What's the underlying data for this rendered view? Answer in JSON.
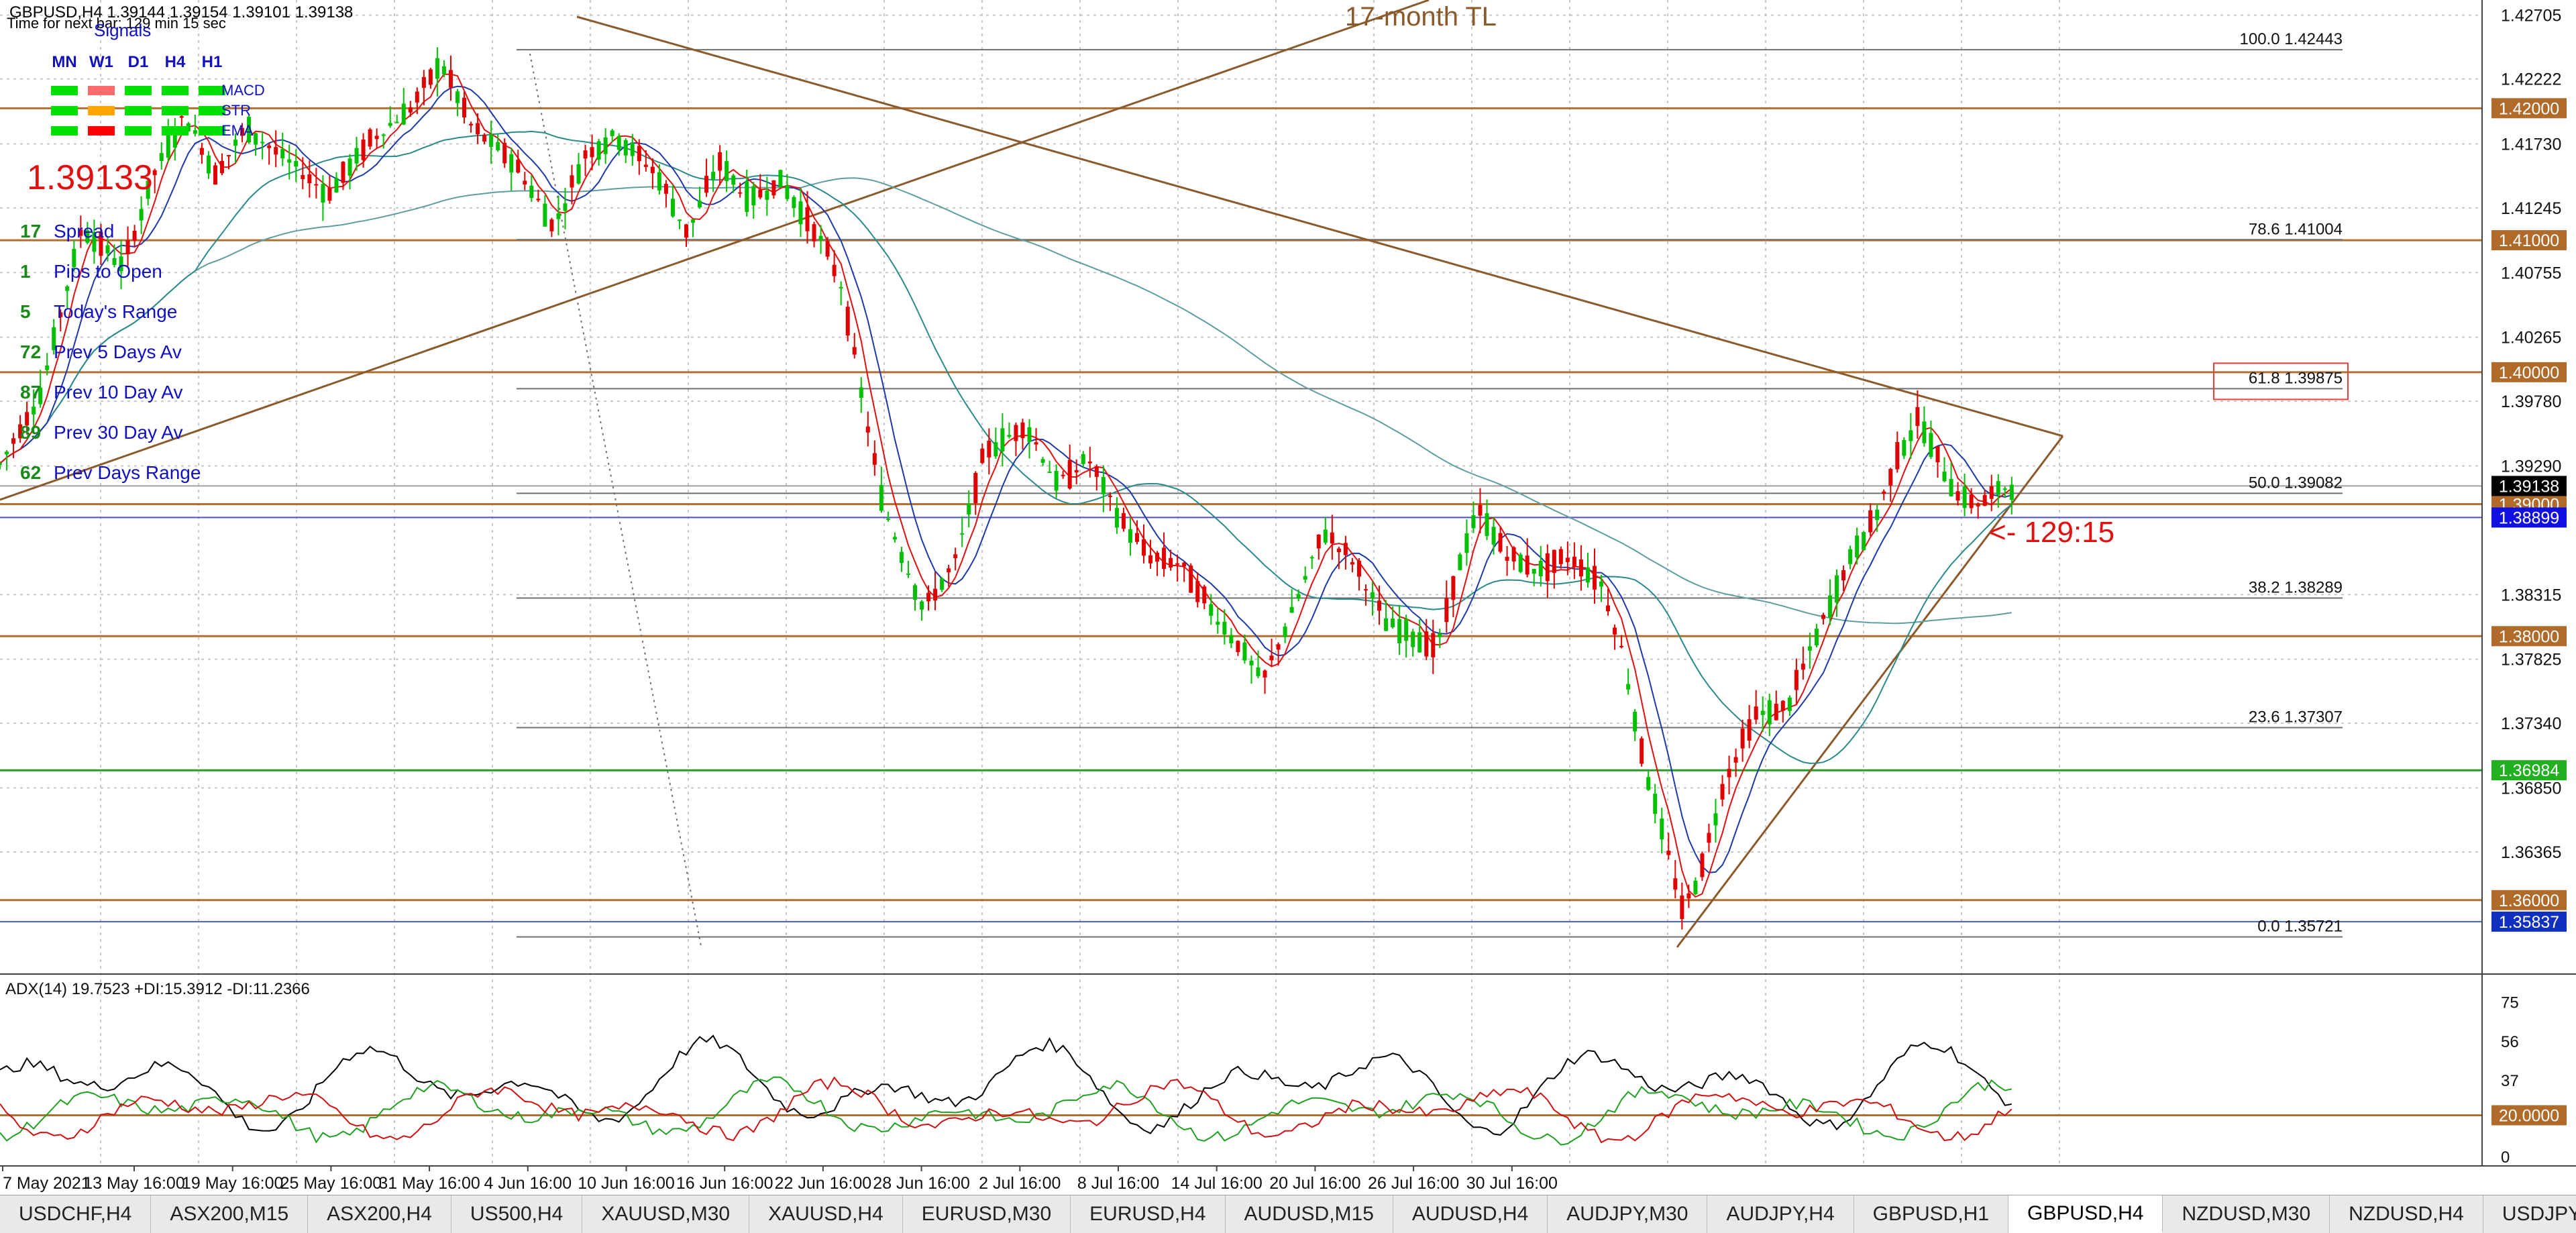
{
  "header": {
    "symbol_line": "GBPUSD,H4  1.39144 1.39154 1.39101 1.39138",
    "timer_line": "Time for next bar: 129 min 15 sec"
  },
  "signals": {
    "title": "Signals",
    "timeframes": [
      "MN",
      "W1",
      "D1",
      "H4",
      "H1"
    ],
    "rows": [
      {
        "name": "MACD",
        "colors": [
          "#00e000",
          "#ff6a6a",
          "#00e000",
          "#00e000",
          "#00e000"
        ]
      },
      {
        "name": "STR",
        "colors": [
          "#00e000",
          "#ffa500",
          "#00e000",
          "#00e000",
          "#00e000"
        ]
      },
      {
        "name": "EMA",
        "colors": [
          "#00e000",
          "#ff0000",
          "#00e000",
          "#00e000",
          "#00e000"
        ]
      }
    ]
  },
  "info_panel": {
    "big_price": "1.39133",
    "rows": [
      {
        "value": "17",
        "label": "Spread"
      },
      {
        "value": "1",
        "label": "Pips to Open"
      },
      {
        "value": "5",
        "label": "Today's Range"
      },
      {
        "value": "72",
        "label": "Prev 5 Days Av"
      },
      {
        "value": "87",
        "label": "Prev 10 Day Av"
      },
      {
        "value": "89",
        "label": "Prev 30 Day Av"
      },
      {
        "value": "62",
        "label": "Prev Days Range"
      }
    ]
  },
  "annotations": {
    "trendline_label": "17-month TL",
    "countdown": "<- 129:15"
  },
  "colors": {
    "bull": "#00c000",
    "bear": "#e00000",
    "ma_red": "#e01010",
    "ma_blue": "#1e3aa8",
    "ma_teal": "#2a8a8a",
    "ma_slow": "#5f9ea0",
    "trendline": "#8b5a2b",
    "level_line": "#b07030",
    "grid": "#c8c8c8"
  },
  "chart_data": {
    "type": "candlestick",
    "symbol": "GBPUSD",
    "timeframe": "H4",
    "price_axis": [
      "1.42705",
      "1.42222",
      "1.41730",
      "1.41245",
      "1.40755",
      "1.40265",
      "1.39780",
      "1.39290",
      "1.38315",
      "1.37825",
      "1.37340",
      "1.36850",
      "1.36365"
    ],
    "price_range": [
      1.3545,
      1.4282
    ],
    "time_axis": [
      "7 May 2021",
      "13 May 16:00",
      "19 May 16:00",
      "25 May 16:00",
      "31 May 16:00",
      "4 Jun 16:00",
      "10 Jun 16:00",
      "16 Jun 16:00",
      "22 Jun 16:00",
      "28 Jun 16:00",
      "2 Jul 16:00",
      "8 Jul 16:00",
      "14 Jul 16:00",
      "20 Jul 16:00",
      "26 Jul 16:00",
      "30 Jul 16:00"
    ],
    "horizontal_levels": [
      {
        "price": 1.42,
        "label": "1.42000"
      },
      {
        "price": 1.41,
        "label": "1.41000"
      },
      {
        "price": 1.4,
        "label": "1.40000"
      },
      {
        "price": 1.39,
        "label": "1.39000"
      },
      {
        "price": 1.38,
        "label": "1.38000"
      },
      {
        "price": 1.36984,
        "label": "1.36984"
      },
      {
        "price": 1.36,
        "label": "1.36000"
      }
    ],
    "current_price": {
      "price": 1.39138,
      "label": "1.39138"
    },
    "ask_price": {
      "price": 1.38899,
      "label": "1.38899"
    },
    "low_marker": {
      "price": 1.35837,
      "label": "1.35837"
    },
    "fibonacci": [
      {
        "level": "100.0",
        "price": 1.42443,
        "label": "1.42443"
      },
      {
        "level": "78.6",
        "price": 1.41004,
        "label": "1.41004"
      },
      {
        "level": "61.8",
        "price": 1.39875,
        "label": "1.39875"
      },
      {
        "level": "50.0",
        "price": 1.39082,
        "label": "1.39082"
      },
      {
        "level": "38.2",
        "price": 1.38289,
        "label": "1.38289"
      },
      {
        "level": "23.6",
        "price": 1.37307,
        "label": "1.37307"
      },
      {
        "level": "0.0",
        "price": 1.35721,
        "label": "1.35721"
      }
    ],
    "close_path": [
      [
        0,
        1.393
      ],
      [
        0.02,
        1.3985
      ],
      [
        0.04,
        1.411
      ],
      [
        0.06,
        1.408
      ],
      [
        0.075,
        1.415
      ],
      [
        0.09,
        1.4195
      ],
      [
        0.105,
        1.415
      ],
      [
        0.12,
        1.4185
      ],
      [
        0.14,
        1.416
      ],
      [
        0.16,
        1.4135
      ],
      [
        0.18,
        1.4175
      ],
      [
        0.2,
        1.42
      ],
      [
        0.215,
        1.4235
      ],
      [
        0.23,
        1.4185
      ],
      [
        0.25,
        1.416
      ],
      [
        0.27,
        1.411
      ],
      [
        0.285,
        1.4165
      ],
      [
        0.3,
        1.418
      ],
      [
        0.32,
        1.415
      ],
      [
        0.335,
        1.4105
      ],
      [
        0.35,
        1.416
      ],
      [
        0.365,
        1.413
      ],
      [
        0.38,
        1.4145
      ],
      [
        0.4,
        1.41
      ],
      [
        0.41,
        1.4065
      ],
      [
        0.42,
        1.398
      ],
      [
        0.43,
        1.39
      ],
      [
        0.44,
        1.386
      ],
      [
        0.45,
        1.382
      ],
      [
        0.465,
        1.3855
      ],
      [
        0.48,
        1.394
      ],
      [
        0.5,
        1.396
      ],
      [
        0.515,
        1.3915
      ],
      [
        0.53,
        1.3935
      ],
      [
        0.545,
        1.389
      ],
      [
        0.56,
        1.386
      ],
      [
        0.575,
        1.3855
      ],
      [
        0.59,
        1.382
      ],
      [
        0.605,
        1.379
      ],
      [
        0.615,
        1.3765
      ],
      [
        0.63,
        1.382
      ],
      [
        0.645,
        1.388
      ],
      [
        0.66,
        1.3855
      ],
      [
        0.675,
        1.381
      ],
      [
        0.69,
        1.38
      ],
      [
        0.7,
        1.379
      ],
      [
        0.71,
        1.385
      ],
      [
        0.72,
        1.3895
      ],
      [
        0.735,
        1.386
      ],
      [
        0.75,
        1.385
      ],
      [
        0.765,
        1.386
      ],
      [
        0.78,
        1.384
      ],
      [
        0.79,
        1.379
      ],
      [
        0.8,
        1.371
      ],
      [
        0.81,
        1.365
      ],
      [
        0.82,
        1.359
      ],
      [
        0.83,
        1.363
      ],
      [
        0.84,
        1.369
      ],
      [
        0.855,
        1.374
      ],
      [
        0.87,
        1.3745
      ],
      [
        0.885,
        1.38
      ],
      [
        0.9,
        1.3855
      ],
      [
        0.915,
        1.3895
      ],
      [
        0.925,
        1.394
      ],
      [
        0.935,
        1.3965
      ],
      [
        0.945,
        1.393
      ],
      [
        0.955,
        1.3905
      ],
      [
        0.965,
        1.39
      ],
      [
        0.975,
        1.3912
      ],
      [
        0.98,
        1.3914
      ]
    ],
    "adx": {
      "label": "ADX(14) 19.7523 +DI:15.3912 -DI:11.2366",
      "axis": [
        "75",
        "56",
        "37",
        "18",
        "0"
      ],
      "range": [
        0,
        80
      ],
      "threshold": {
        "value": 20,
        "label": "20.0000"
      }
    }
  },
  "tabs": [
    {
      "label": "USDCHF,H4",
      "active": false
    },
    {
      "label": "ASX200,M15",
      "active": false
    },
    {
      "label": "ASX200,H4",
      "active": false
    },
    {
      "label": "US500,H4",
      "active": false
    },
    {
      "label": "XAUUSD,M30",
      "active": false
    },
    {
      "label": "XAUUSD,H4",
      "active": false
    },
    {
      "label": "EURUSD,M30",
      "active": false
    },
    {
      "label": "EURUSD,H4",
      "active": false
    },
    {
      "label": "AUDUSD,M15",
      "active": false
    },
    {
      "label": "AUDUSD,H4",
      "active": false
    },
    {
      "label": "AUDJPY,M30",
      "active": false
    },
    {
      "label": "AUDJPY,H4",
      "active": false
    },
    {
      "label": "GBPUSD,H1",
      "active": false
    },
    {
      "label": "GBPUSD,H4",
      "active": true
    },
    {
      "label": "NZDUSD,M30",
      "active": false
    },
    {
      "label": "NZDUSD,H4",
      "active": false
    },
    {
      "label": "USDJPY,M30",
      "active": false
    },
    {
      "label": "USD",
      "active": false
    }
  ]
}
